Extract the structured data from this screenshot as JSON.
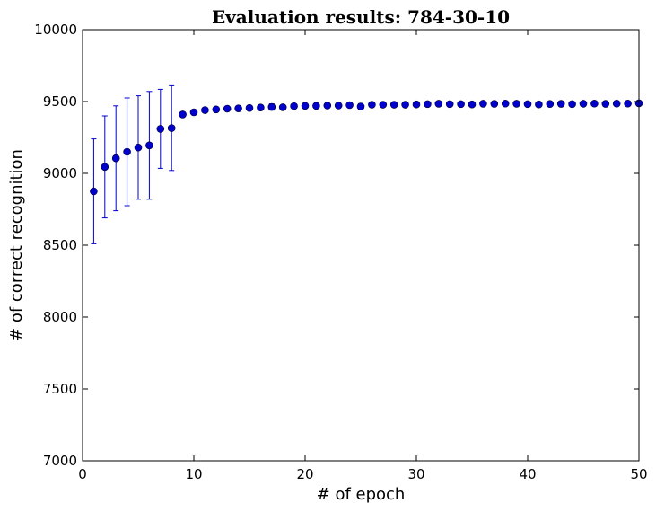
{
  "chart_data": {
    "type": "scatter",
    "title": "Evaluation results: 784-30-10",
    "xlabel": "# of epoch",
    "ylabel": "# of correct recognition",
    "xlim": [
      0,
      50
    ],
    "ylim": [
      7000,
      10000
    ],
    "xticks": [
      0,
      10,
      20,
      30,
      40,
      50
    ],
    "yticks": [
      7000,
      7500,
      8000,
      8500,
      9000,
      9500,
      10000
    ],
    "grid": false,
    "legend": "none",
    "colors": {
      "marker": "#0000cc",
      "errorbar": "#0000cc",
      "axes": "#000000"
    },
    "series": [
      {
        "x": [
          1,
          2,
          3,
          4,
          5,
          6,
          7,
          8,
          9,
          10,
          11,
          12,
          13,
          14,
          15,
          16,
          17,
          18,
          19,
          20,
          21,
          22,
          23,
          24,
          25,
          26,
          27,
          28,
          29,
          30,
          31,
          32,
          33,
          34,
          35,
          36,
          37,
          38,
          39,
          40,
          41,
          42,
          43,
          44,
          45,
          46,
          47,
          48,
          49,
          50
        ],
        "y": [
          8875,
          9045,
          9105,
          9150,
          9180,
          9195,
          9310,
          9315,
          9410,
          9425,
          9440,
          9445,
          9450,
          9452,
          9455,
          9458,
          9462,
          9460,
          9468,
          9470,
          9470,
          9472,
          9472,
          9475,
          9465,
          9478,
          9478,
          9478,
          9478,
          9480,
          9482,
          9485,
          9482,
          9482,
          9480,
          9485,
          9484,
          9486,
          9485,
          9482,
          9480,
          9483,
          9484,
          9482,
          9485,
          9486,
          9484,
          9486,
          9486,
          9488
        ],
        "err": [
          365,
          355,
          365,
          375,
          360,
          375,
          275,
          295,
          15,
          15,
          12,
          12,
          10,
          10,
          10,
          10,
          22,
          10,
          10,
          10,
          10,
          10,
          10,
          10,
          20,
          10,
          10,
          10,
          10,
          10,
          10,
          10,
          10,
          10,
          10,
          10,
          10,
          10,
          10,
          10,
          10,
          10,
          10,
          10,
          10,
          10,
          10,
          10,
          10,
          10
        ]
      }
    ]
  }
}
